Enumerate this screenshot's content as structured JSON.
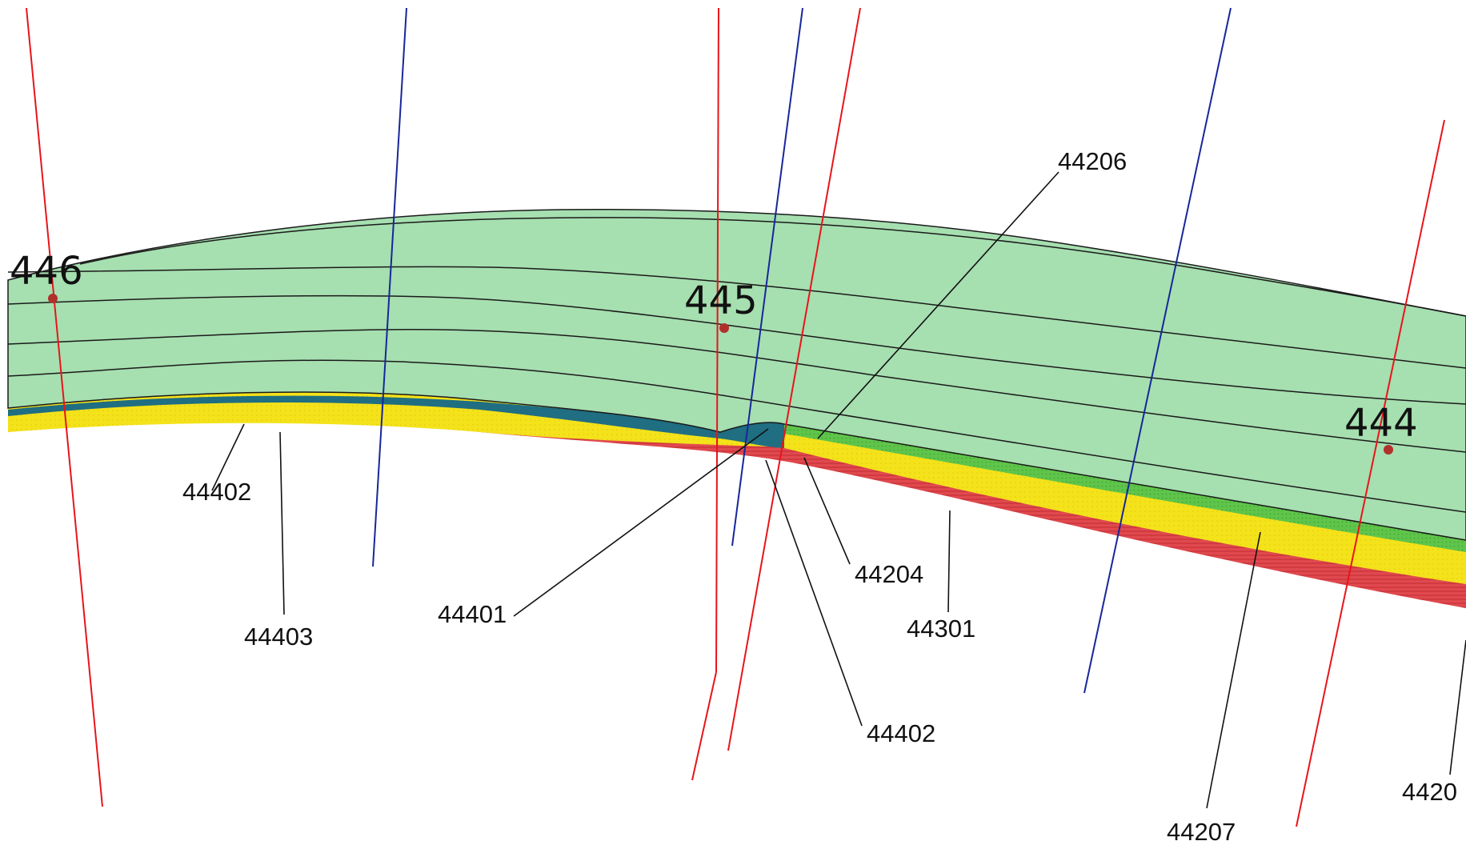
{
  "colors": {
    "green_layer": "#a6dfb0",
    "dark_teal_layer": "#1f6e82",
    "yellow_layer": "#f4e21a",
    "red_layer": "#e0494e",
    "thin_green_band": "#5fc54a",
    "red_line": "#e8141b",
    "blue_line": "#17269a",
    "well_dot": "#b0302c"
  },
  "wells": [
    {
      "id": "well-446",
      "label": "446"
    },
    {
      "id": "well-445",
      "label": "445"
    },
    {
      "id": "well-444",
      "label": "444"
    }
  ],
  "units": [
    {
      "id": "unit-44206",
      "label": "44206"
    },
    {
      "id": "unit-44402-left",
      "label": "44402"
    },
    {
      "id": "unit-44403",
      "label": "44403"
    },
    {
      "id": "unit-44401",
      "label": "44401"
    },
    {
      "id": "unit-44204",
      "label": "44204"
    },
    {
      "id": "unit-44301",
      "label": "44301"
    },
    {
      "id": "unit-44402-center",
      "label": "44402"
    },
    {
      "id": "unit-44207",
      "label": "44207"
    },
    {
      "id": "unit-4420-edge",
      "label": "4420"
    }
  ]
}
